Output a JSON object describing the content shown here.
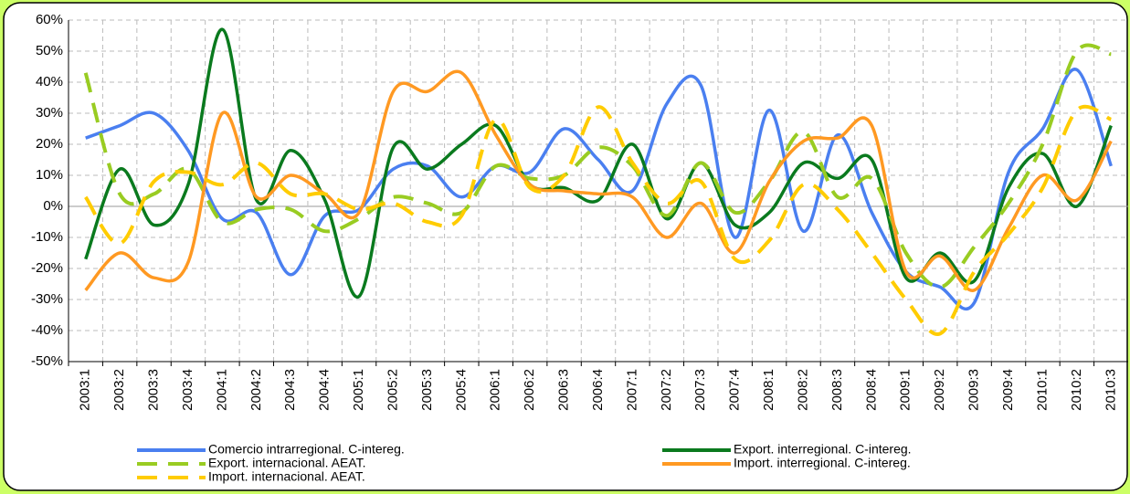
{
  "chart_data": {
    "type": "line",
    "categories": [
      "2003:1",
      "2003:2",
      "2003:3",
      "2003:4",
      "2004:1",
      "2004:2",
      "2004:3",
      "2004:4",
      "2005:1",
      "2005:2",
      "2005:3",
      "2005:4",
      "2006:1",
      "2006:2",
      "2006:3",
      "2006:4",
      "2007:1",
      "2007:2",
      "2007:3",
      "2007:4",
      "2008:1",
      "2008:2",
      "2008:3",
      "2008:4",
      "2009:1",
      "2009:2",
      "2009:3",
      "2009:4",
      "2010:1",
      "2010:2",
      "2010:3"
    ],
    "series": [
      {
        "name": "Comercio intrarregional. C-intereg.",
        "color": "#4a7ff0",
        "dashed": false,
        "values": [
          22,
          26,
          30,
          18,
          -4,
          -2,
          -22,
          -3,
          -1,
          12,
          13,
          3,
          13,
          11,
          25,
          15,
          5,
          33,
          39,
          -10,
          31,
          -8,
          23,
          -2,
          -21,
          -26,
          -31,
          11,
          25,
          44,
          13
        ]
      },
      {
        "name": "Export. interregional. C-intereg.",
        "color": "#0a7a1e",
        "dashed": false,
        "values": [
          -17,
          12,
          -6,
          7,
          57,
          2,
          18,
          2,
          -29,
          19,
          12,
          20,
          26,
          7,
          6,
          2,
          20,
          -4,
          14,
          -6,
          -2,
          14,
          9,
          15,
          -23,
          -15,
          -24,
          6,
          17,
          0,
          26
        ]
      },
      {
        "name": "Export. internacional. AEAT.",
        "color": "#99cc22",
        "dashed": true,
        "values": [
          43,
          4,
          4,
          12,
          -5,
          -1,
          -1,
          -8,
          -4,
          3,
          1,
          -2,
          13,
          9,
          10,
          19,
          13,
          -3,
          14,
          -2,
          8,
          24,
          3,
          9,
          -15,
          -26,
          -13,
          1,
          20,
          50,
          49
        ]
      },
      {
        "name": "Import. interregional. C-intereg.",
        "color": "#ff9922",
        "dashed": false,
        "values": [
          -27,
          -15,
          -23,
          -18,
          30,
          3,
          10,
          4,
          -2,
          37,
          37,
          43,
          23,
          7,
          5,
          4,
          3,
          -10,
          1,
          -15,
          8,
          21,
          22,
          26,
          -21,
          -16,
          -27,
          -7,
          10,
          2,
          21
        ]
      },
      {
        "name": "Import. internacional. AEAT.",
        "color": "#ffcc00",
        "dashed": true,
        "values": [
          3,
          -12,
          8,
          11,
          7,
          14,
          4,
          4,
          -1,
          1,
          -5,
          -3,
          28,
          6,
          10,
          32,
          14,
          1,
          8,
          -17,
          -11,
          7,
          -1,
          -15,
          -30,
          -41,
          -21,
          -9,
          6,
          31,
          28
        ]
      }
    ],
    "ylim": [
      -50,
      60
    ],
    "yticks": [
      {
        "value": -50,
        "label": "-50%"
      },
      {
        "value": -40,
        "label": "-40%"
      },
      {
        "value": -30,
        "label": "-30%"
      },
      {
        "value": -20,
        "label": "-20%"
      },
      {
        "value": -10,
        "label": "-10%"
      },
      {
        "value": 0,
        "label": "0%"
      },
      {
        "value": 10,
        "label": "10%"
      },
      {
        "value": 20,
        "label": "20%"
      },
      {
        "value": 30,
        "label": "30%"
      },
      {
        "value": 40,
        "label": "40%"
      },
      {
        "value": 50,
        "label": "50%"
      },
      {
        "value": 60,
        "label": "60%"
      }
    ],
    "grid": true
  }
}
